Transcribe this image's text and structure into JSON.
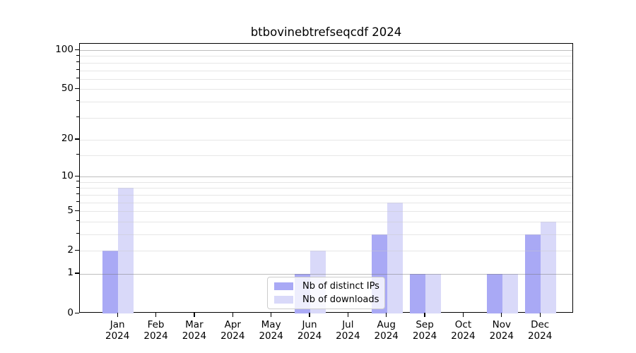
{
  "title": "btbovinebtrefseqcdf 2024",
  "chart_data": {
    "type": "bar",
    "title": "btbovinebtrefseqcdf 2024",
    "categories": [
      "Jan",
      "Feb",
      "Mar",
      "Apr",
      "May",
      "Jun",
      "Jul",
      "Aug",
      "Sep",
      "Oct",
      "Nov",
      "Dec"
    ],
    "year_label": "2024",
    "series": [
      {
        "name": "Nb of distinct IPs",
        "color": "#a9a9f5",
        "values": [
          2,
          0,
          0,
          0,
          0,
          1,
          0,
          3,
          1,
          0,
          1,
          3
        ]
      },
      {
        "name": "Nb of downloads",
        "color": "#d9d9f9",
        "values": [
          8,
          0,
          0,
          0,
          0,
          2,
          0,
          6,
          1,
          0,
          1,
          4
        ]
      }
    ],
    "xlabel": "",
    "ylabel": "",
    "yscale": "log1p",
    "yticks": [
      0,
      1,
      2,
      5,
      10,
      20,
      50,
      100
    ],
    "major_grid_values": [
      1,
      10,
      100
    ],
    "minor_grid_values": [
      3,
      4,
      6,
      7,
      8,
      9,
      15,
      30,
      40,
      60,
      70,
      80,
      90
    ],
    "ylim": [
      0,
      112
    ],
    "grid": "both",
    "legend_position": "lower center",
    "colors": {
      "background": "#ffffff",
      "spine": "#000000",
      "text": "#000000",
      "major_grid": "rgba(110,110,110,0.45)",
      "minor_grid": "rgba(200,200,200,0.45)"
    }
  }
}
